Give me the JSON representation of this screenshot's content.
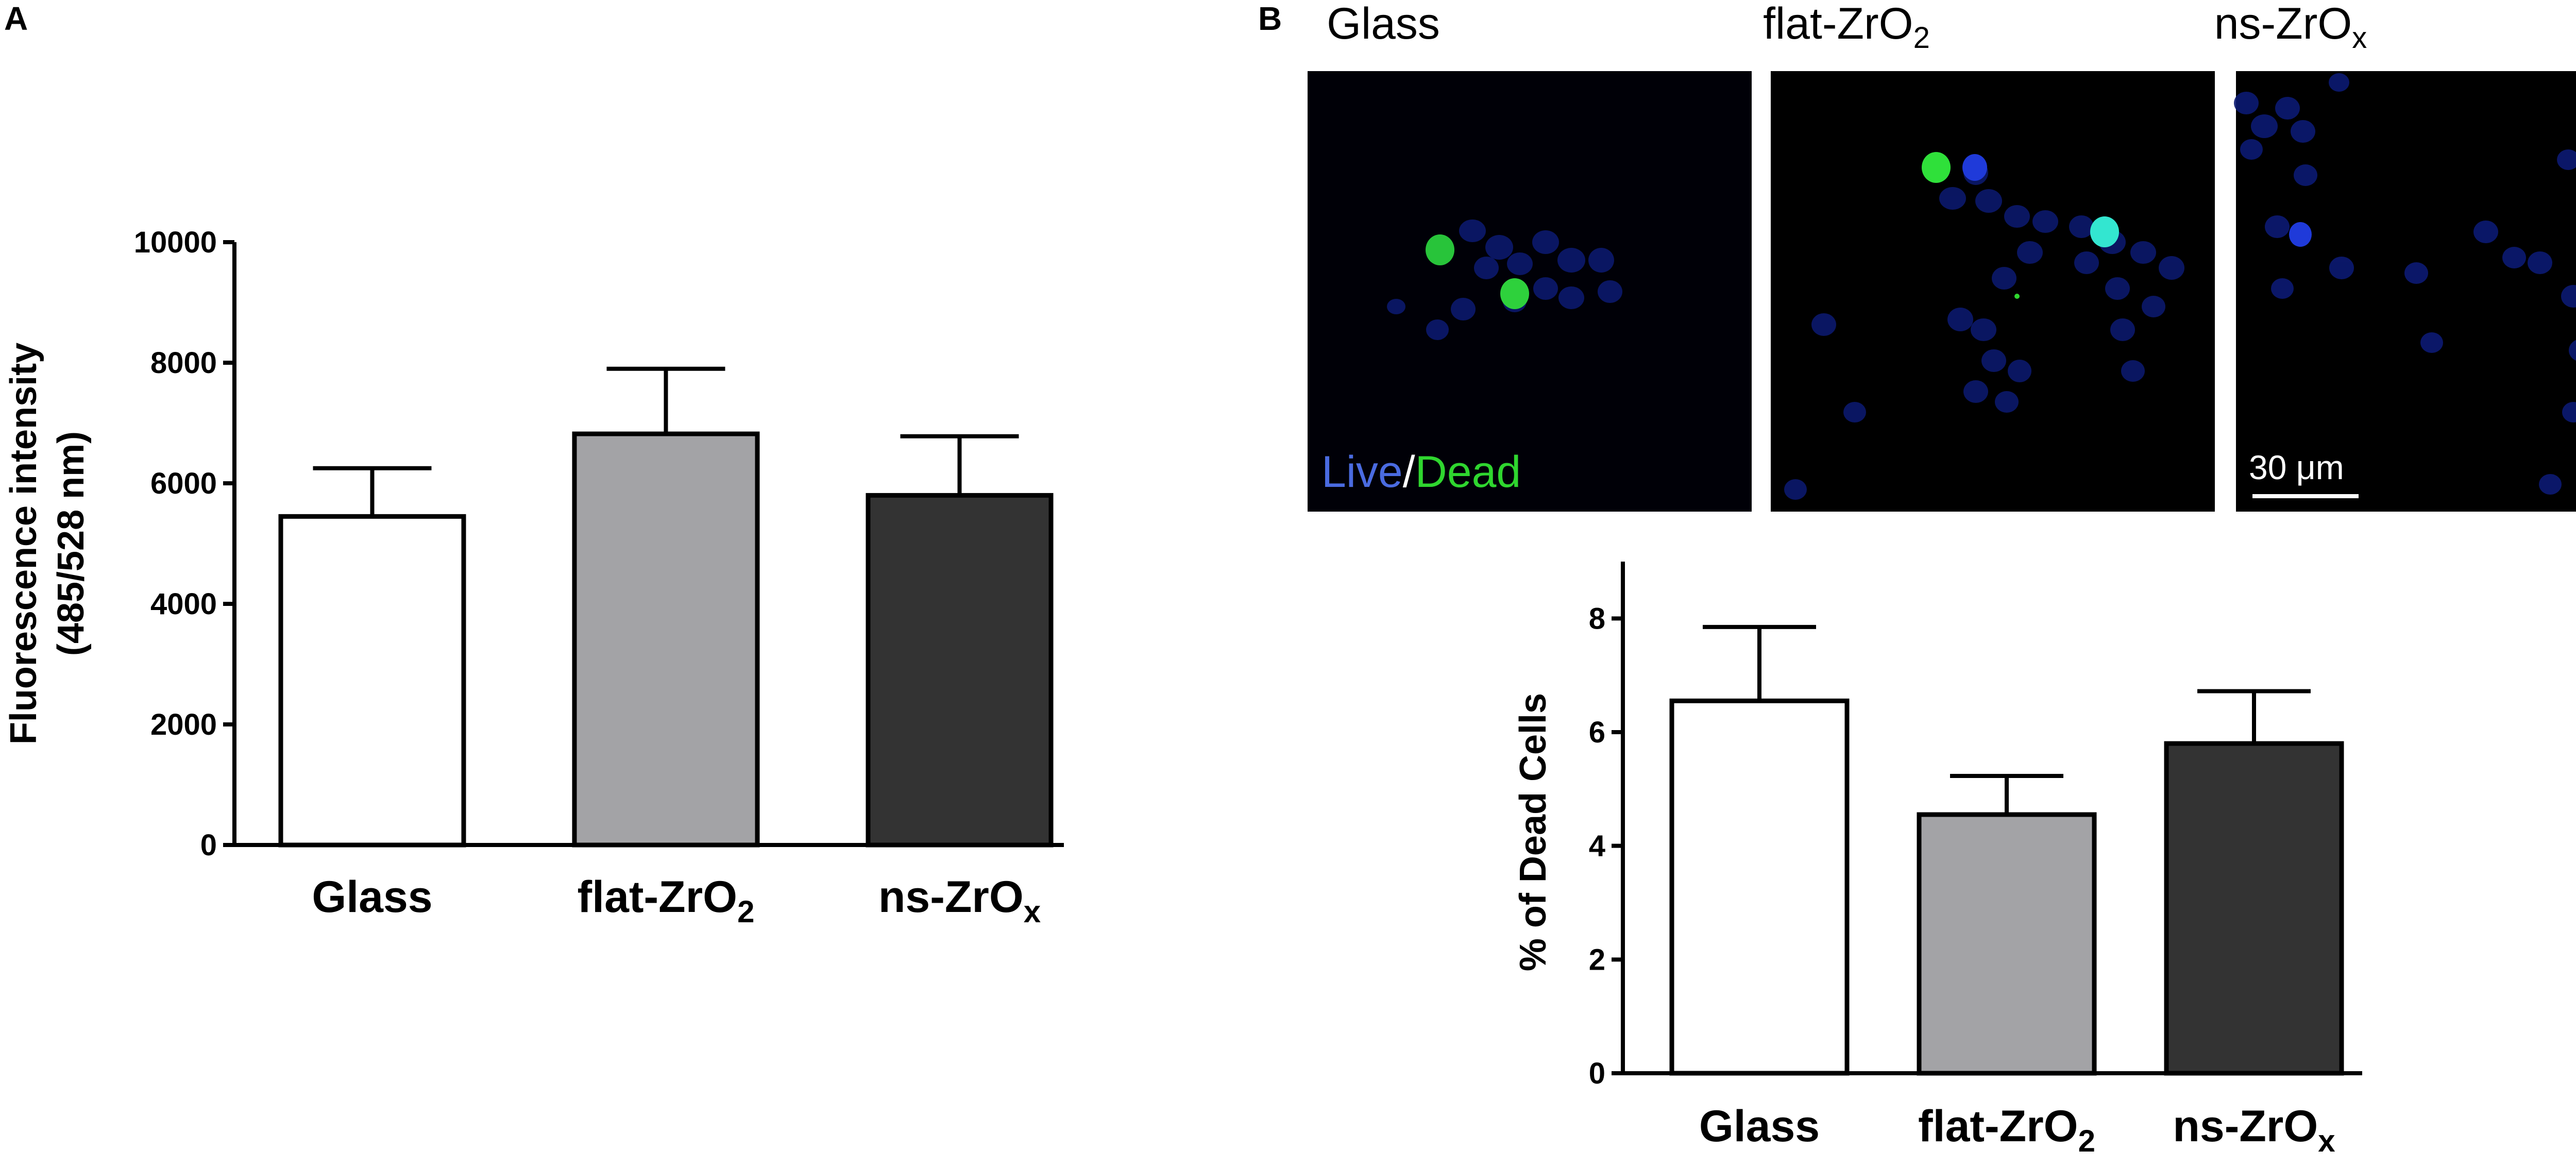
{
  "panels": {
    "a_label": "A",
    "b_label": "B"
  },
  "micrographs": {
    "titles": [
      {
        "main": "Glass",
        "sub": ""
      },
      {
        "main": "flat-ZrO",
        "sub": "2"
      },
      {
        "main": "ns-ZrO",
        "sub": "x"
      }
    ],
    "legend_live": "Live",
    "legend_sep": "/",
    "legend_dead": "Dead",
    "scale_bar": "30 μm",
    "colors": {
      "live": "#4a6be0",
      "dead": "#2fd62f",
      "background": "#000000"
    }
  },
  "chart_data": [
    {
      "type": "bar",
      "panel": "A",
      "categories": [
        {
          "main": "Glass",
          "sub": ""
        },
        {
          "main": "flat-ZrO",
          "sub": "2"
        },
        {
          "main": "ns-ZrO",
          "sub": "x"
        }
      ],
      "values": [
        5450,
        6820,
        5800
      ],
      "errors": [
        800,
        1080,
        980
      ],
      "ylabel_line1": "Fluorescence intensity",
      "ylabel_line2": "(485/528 nm)",
      "ylim": [
        0,
        10000
      ],
      "yticks": [
        0,
        2000,
        4000,
        6000,
        8000,
        10000
      ],
      "bar_colors": [
        "#ffffff",
        "#a3a3a6",
        "#333333"
      ],
      "grid": false
    },
    {
      "type": "bar",
      "panel": "B",
      "categories": [
        {
          "main": "Glass",
          "sub": ""
        },
        {
          "main": "flat-ZrO",
          "sub": "2"
        },
        {
          "main": "ns-ZrO",
          "sub": "x"
        }
      ],
      "values": [
        6.55,
        4.55,
        5.8
      ],
      "errors": [
        1.3,
        0.68,
        0.92
      ],
      "ylabel": "% of Dead Cells",
      "ylim": [
        0,
        9
      ],
      "yticks": [
        0,
        2,
        4,
        6,
        8
      ],
      "bar_colors": [
        "#ffffff",
        "#a3a3a6",
        "#333333"
      ],
      "grid": false
    }
  ]
}
